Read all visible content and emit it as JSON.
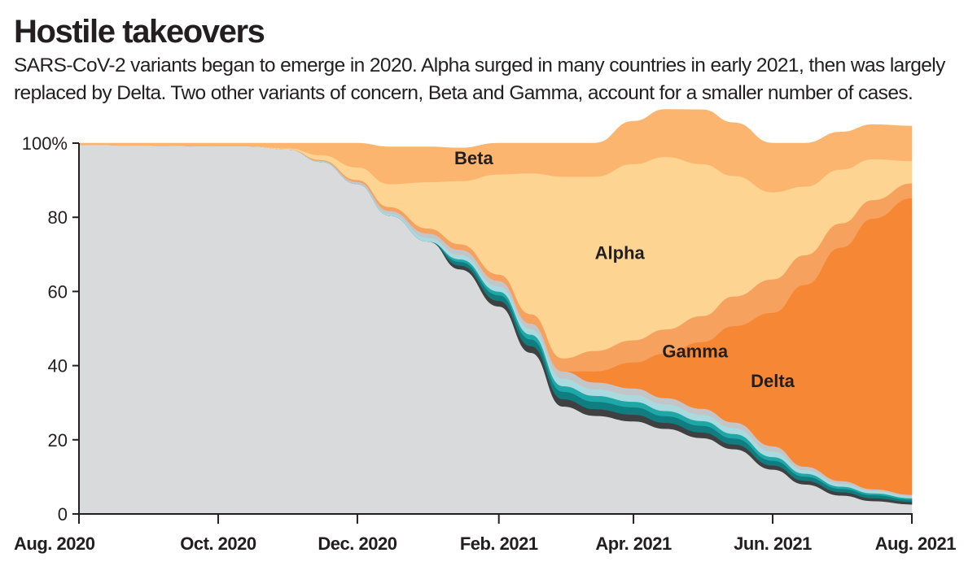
{
  "title": "Hostile takeovers",
  "subtitle": "SARS-CoV-2 variants began to emerge in 2020. Alpha surged in many countries in early 2021, then was largely replaced by Delta. Two other variants of concern, Beta and Gamma, account for a smaller number of cases.",
  "chart_data": {
    "type": "area",
    "stacked": true,
    "x": [
      "2020-08-01",
      "2020-09-01",
      "2020-10-01",
      "2020-10-15",
      "2020-11-01",
      "2020-11-15",
      "2020-12-01",
      "2020-12-15",
      "2021-01-01",
      "2021-01-15",
      "2021-02-01",
      "2021-02-15",
      "2021-03-01",
      "2021-03-15",
      "2021-04-01",
      "2021-04-15",
      "2021-05-01",
      "2021-05-15",
      "2021-06-01",
      "2021-06-15",
      "2021-07-01",
      "2021-07-15",
      "2021-08-01"
    ],
    "x_ticks": [
      "2020-08-01",
      "2020-10-01",
      "2020-12-01",
      "2021-02-01",
      "2021-04-01",
      "2021-06-01",
      "2021-08-01"
    ],
    "x_tick_labels": [
      "Aug. 2020",
      "Oct. 2020",
      "Dec. 2020",
      "Feb. 2021",
      "Apr. 2021",
      "Jun. 2021",
      "Aug. 2021"
    ],
    "y_ticks": [
      0,
      20,
      40,
      60,
      80,
      100
    ],
    "y_tick_labels": [
      "0",
      "20",
      "40",
      "60",
      "80",
      "100%"
    ],
    "ylim": [
      0,
      100
    ],
    "series": [
      {
        "values": [
          99.6,
          99.4,
          99.2,
          99.2,
          98.3,
          95.0,
          89.0,
          80.5,
          73.5,
          66.0,
          56.0,
          43.5,
          29.0,
          26.5,
          25.0,
          23.0,
          20.5,
          17.5,
          12.0,
          8.0,
          5.0,
          3.5,
          2.6
        ],
        "color": "#d9dadb"
      },
      {
        "values": [
          0,
          0,
          0,
          0,
          0,
          0,
          0,
          0,
          0,
          1.0,
          1.5,
          1.8,
          2.0,
          1.8,
          1.8,
          1.6,
          1.5,
          1.3,
          1.1,
          1.0,
          0.9,
          0.8,
          0.7
        ],
        "color": "#3f4042"
      },
      {
        "values": [
          0,
          0,
          0,
          0,
          0,
          0,
          0,
          0,
          0,
          1.0,
          1.5,
          1.8,
          2.0,
          2.0,
          2.0,
          1.8,
          1.8,
          1.6,
          1.3,
          1.1,
          0.9,
          0.8,
          0.6
        ],
        "color": "#107d80"
      },
      {
        "values": [
          0,
          0,
          0,
          0,
          0,
          0,
          0,
          0,
          0,
          0.7,
          1.0,
          1.3,
          1.5,
          1.6,
          1.5,
          1.4,
          1.3,
          1.2,
          1.0,
          0.8,
          0.6,
          0.5,
          0.4
        ],
        "color": "#1ea7a6"
      },
      {
        "values": [
          0,
          0,
          0,
          0,
          0,
          0,
          0,
          0.5,
          1.0,
          1.2,
          1.4,
          1.5,
          2.0,
          1.8,
          1.8,
          1.8,
          1.7,
          1.6,
          1.5,
          1.0,
          0.8,
          0.6,
          0.5
        ],
        "color": "#a9dadf"
      },
      {
        "values": [
          0,
          0,
          0,
          0,
          0,
          0.3,
          0.6,
          0.8,
          1.2,
          1.4,
          1.5,
          1.5,
          2.0,
          1.8,
          1.8,
          1.7,
          1.6,
          1.5,
          1.4,
          0.9,
          0.7,
          0.5,
          0.4
        ],
        "color": "#c3c5c7"
      },
      {
        "values": [
          0,
          0,
          0,
          0,
          0,
          0,
          0,
          0,
          0,
          0,
          0,
          0,
          0,
          3.0,
          7.0,
          12.0,
          18.0,
          26.0,
          36.0,
          49.0,
          63.0,
          73.0,
          80.0
        ],
        "color": "#f68735"
      },
      {
        "values": [
          0,
          0,
          0,
          0,
          0,
          0.2,
          0.5,
          1.0,
          1.3,
          1.5,
          1.7,
          2.5,
          3.5,
          5.5,
          6.0,
          6.5,
          7.0,
          8.0,
          9.0,
          8.0,
          6.5,
          5.0,
          4.0
        ],
        "color": "#f7a15f"
      },
      {
        "values": [
          0,
          0,
          0,
          0,
          0.3,
          1.3,
          3.4,
          6.2,
          12.5,
          17.0,
          27.0,
          38.0,
          49.0,
          47.0,
          47.5,
          46.5,
          41.0,
          32.5,
          23.5,
          18.5,
          14.5,
          11.0,
          6.0
        ],
        "color": "#fdd491"
      },
      {
        "values": [
          0.4,
          0.6,
          0.8,
          0.8,
          1.4,
          3.2,
          6.5,
          10.0,
          9.5,
          8.9,
          8.4,
          8.1,
          9.0,
          9.0,
          11.5,
          12.8,
          14.6,
          14.3,
          13.2,
          11.7,
          10.1,
          9.3,
          9.4
        ],
        "color": "#fbb56f"
      }
    ],
    "labels": [
      {
        "text": "Beta",
        "x": "2021-01-21",
        "y": 96.0
      },
      {
        "text": "Alpha",
        "x": "2021-03-26",
        "y": 70.5
      },
      {
        "text": "Gamma",
        "x": "2021-04-28",
        "y": 44.0
      },
      {
        "text": "Delta",
        "x": "2021-06-01",
        "y": 36.0
      }
    ]
  }
}
